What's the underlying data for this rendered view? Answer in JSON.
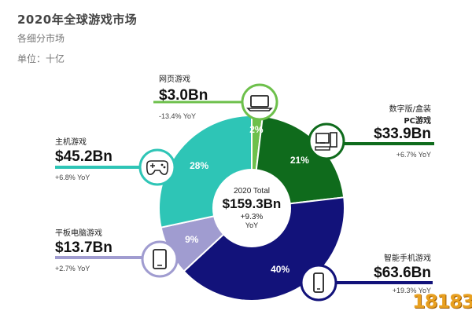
{
  "header": {
    "title": "2020年全球游戏市场",
    "subtitle": "各细分市场",
    "unit": "单位：十亿"
  },
  "total": {
    "label": "2020 Total",
    "value": "$159.3Bn",
    "growth": "+9.3%",
    "growth_unit": "YoY"
  },
  "colors": {
    "browser": "#6dc04b",
    "pc": "#0f6b1c",
    "mobile": "#12127a",
    "tablet": "#a09cd0",
    "console": "#2ec5b6"
  },
  "icons": {
    "browser": "laptop-icon",
    "pc": "desktop-pc-icon",
    "mobile": "smartphone-icon",
    "tablet": "tablet-icon",
    "console": "gamepad-icon"
  },
  "segments": {
    "browser": {
      "name": "网页游戏",
      "value": "$3.0Bn",
      "yoy": "-13.4% YoY"
    },
    "pc": {
      "name_line1": "数字版/盒装",
      "name_line2": "PC游戏",
      "value": "$33.9Bn",
      "yoy": "+6.7% YoY"
    },
    "console": {
      "name": "主机游戏",
      "value": "$45.2Bn",
      "yoy": "+6.8% YoY"
    },
    "tablet": {
      "name": "平板电脑游戏",
      "value": "$13.7Bn",
      "yoy": "+2.7% YoY"
    },
    "mobile": {
      "name": "智能手机游戏",
      "value": "$63.6Bn",
      "yoy": "+19.3% YoY"
    }
  },
  "watermark": "18183",
  "chart_data": {
    "type": "pie",
    "title": "2020年全球游戏市场",
    "subtitle": "各细分市场",
    "slices": [
      {
        "label": "网页游戏",
        "value": 3.0,
        "percent_label": "2%"
      },
      {
        "label": "数字版/盒装PC游戏",
        "value": 33.9,
        "percent_label": "21%"
      },
      {
        "label": "智能手机游戏",
        "value": 63.6,
        "percent_label": "40%"
      },
      {
        "label": "平板电脑游戏",
        "value": 13.7,
        "percent_label": "9%"
      },
      {
        "label": "主机游戏",
        "value": 45.2,
        "percent_label": "28%"
      }
    ],
    "total": 159.3,
    "legend": "none"
  }
}
